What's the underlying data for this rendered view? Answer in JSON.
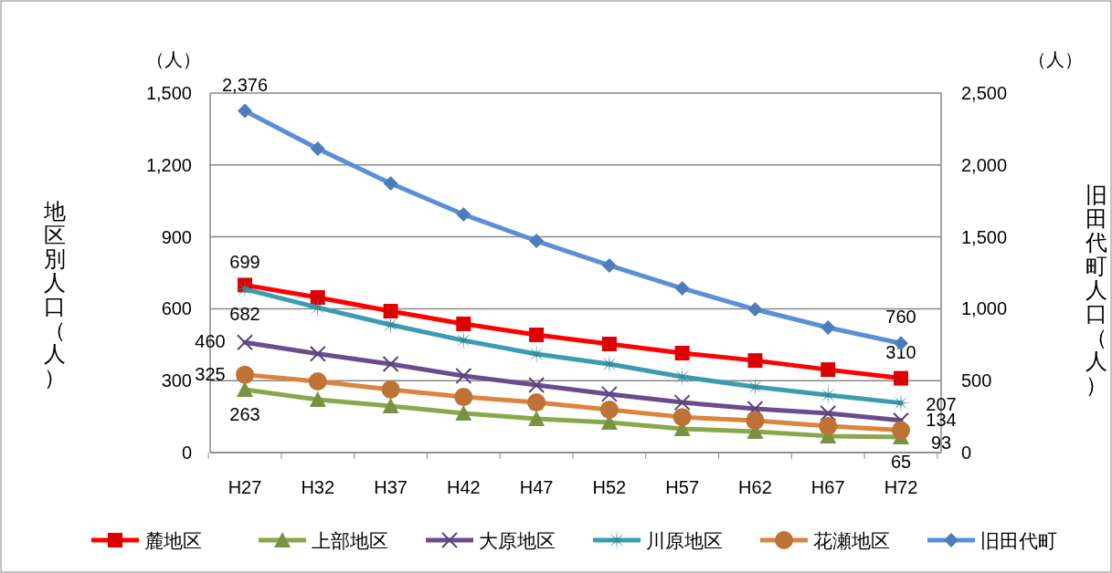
{
  "chart_data": {
    "type": "line",
    "categories": [
      "H27",
      "H32",
      "H37",
      "H42",
      "H47",
      "H52",
      "H57",
      "H62",
      "H67",
      "H72"
    ],
    "ylabel": "地区別人口（人）",
    "y2label": "旧田代町人口（人）",
    "annotations": [
      "（人）",
      "（人）"
    ],
    "ylim": [
      0,
      1500
    ],
    "yticks": [
      {
        "value": 0,
        "label": "0"
      },
      {
        "value": 300,
        "label": "300"
      },
      {
        "value": 600,
        "label": "600"
      },
      {
        "value": 900,
        "label": "900"
      },
      {
        "value": 1200,
        "label": "1,200"
      },
      {
        "value": 1500,
        "label": "1,500"
      }
    ],
    "y2lim": [
      0,
      2500
    ],
    "y2ticks": [
      {
        "value": 0,
        "label": "0"
      },
      {
        "value": 500,
        "label": "500"
      },
      {
        "value": 1000,
        "label": "1,000"
      },
      {
        "value": 1500,
        "label": "1,500"
      },
      {
        "value": 2000,
        "label": "2,000"
      },
      {
        "value": 2500,
        "label": "2,500"
      }
    ],
    "grid": "y",
    "legend": "bottom",
    "series": [
      {
        "name": "麓地区",
        "color": "#ff0000",
        "marker": "square",
        "values": [
          699,
          647,
          590,
          537,
          491,
          453,
          415,
          384,
          346,
          310
        ],
        "value_labels": [
          "699",
          null,
          null,
          null,
          null,
          null,
          null,
          null,
          null,
          "310"
        ]
      },
      {
        "name": "上部地区",
        "color": "#8aa84b",
        "marker": "triangle",
        "values": [
          263,
          221,
          194,
          164,
          141,
          126,
          99,
          88,
          69,
          65
        ],
        "value_labels": [
          "263",
          null,
          null,
          null,
          null,
          null,
          null,
          null,
          null,
          "65"
        ]
      },
      {
        "name": "大原地区",
        "color": "#6a4c8c",
        "marker": "cross",
        "values": [
          460,
          412,
          369,
          320,
          282,
          244,
          209,
          183,
          164,
          134
        ],
        "value_labels": [
          "460",
          null,
          null,
          null,
          null,
          null,
          null,
          null,
          null,
          "134"
        ]
      },
      {
        "name": "川原地区",
        "color": "#3c9bb0",
        "marker": "star",
        "values": [
          682,
          605,
          533,
          468,
          411,
          369,
          316,
          274,
          240,
          207
        ],
        "value_labels": [
          "682",
          null,
          null,
          null,
          null,
          null,
          null,
          null,
          null,
          "207"
        ]
      },
      {
        "name": "花瀬地区",
        "color": "#db843d",
        "marker": "circle",
        "values": [
          325,
          297,
          263,
          232,
          209,
          179,
          148,
          133,
          110,
          93
        ],
        "value_labels": [
          "325",
          null,
          null,
          null,
          null,
          null,
          null,
          null,
          null,
          "93"
        ]
      },
      {
        "name": "旧田代町",
        "color": "#5a8fd8",
        "marker": "diamond",
        "axis": "y2",
        "values": [
          2376,
          2113,
          1872,
          1656,
          1472,
          1301,
          1142,
          996,
          869,
          760
        ],
        "value_labels": [
          "2,376",
          null,
          null,
          null,
          null,
          null,
          null,
          null,
          null,
          "760"
        ]
      }
    ]
  }
}
